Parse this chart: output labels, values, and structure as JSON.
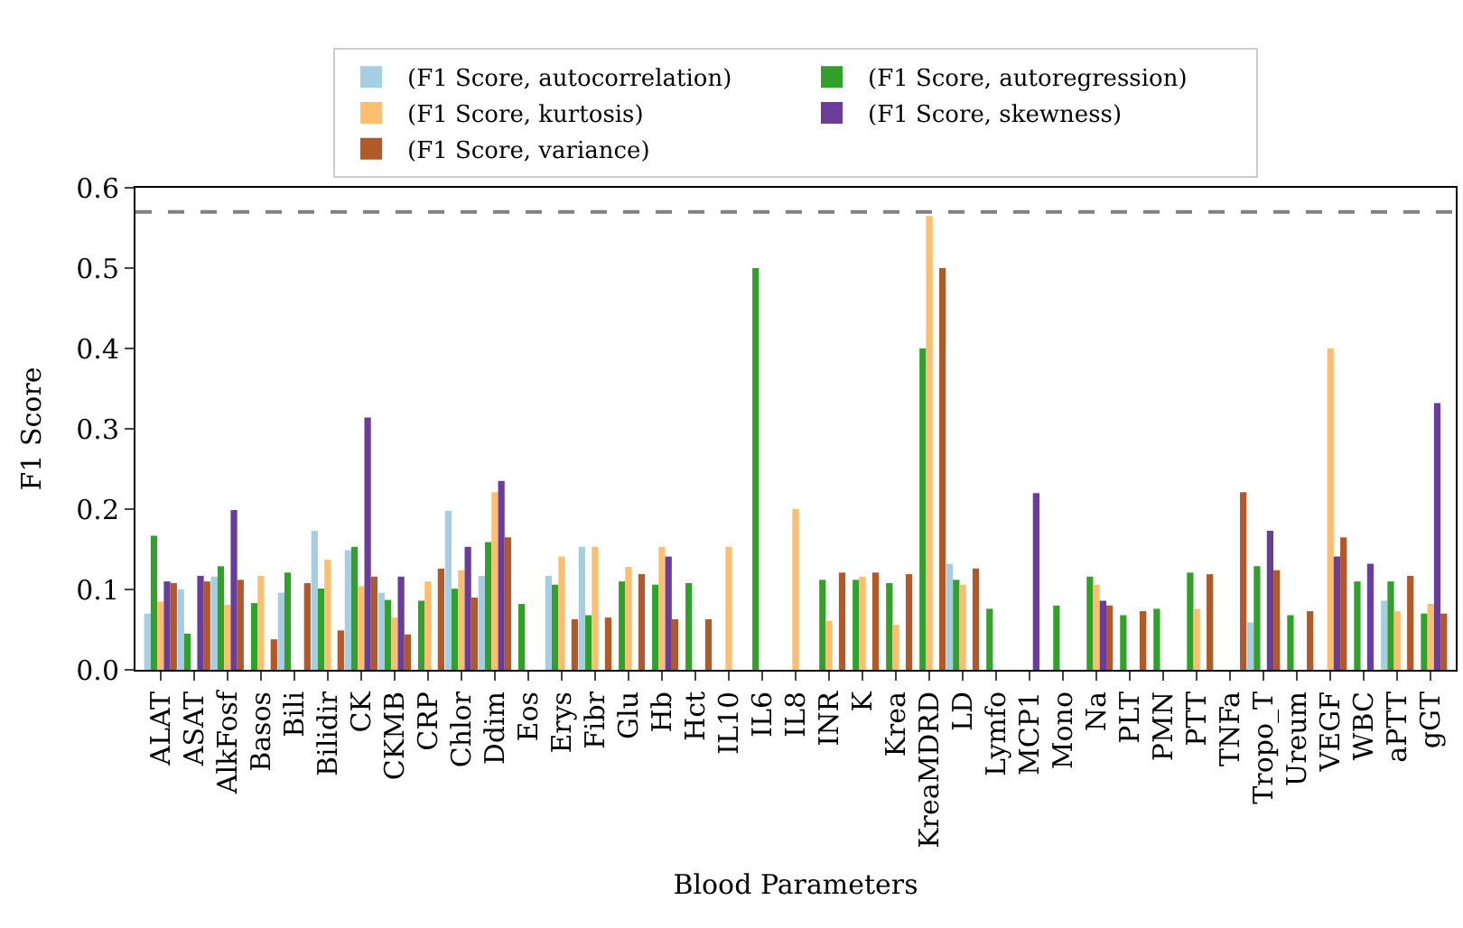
{
  "chart_data": {
    "type": "bar",
    "xlabel": "Blood Parameters",
    "ylabel": "F1 Score",
    "categories": [
      "ALAT",
      "ASAT",
      "AlkFosf",
      "Basos",
      "Bili",
      "Bilidir",
      "CK",
      "CKMB",
      "CRP",
      "Chlor",
      "Ddim",
      "Eos",
      "Erys",
      "Fibr",
      "Glu",
      "Hb",
      "Hct",
      "IL10",
      "IL6",
      "IL8",
      "INR",
      "K",
      "Krea",
      "KreaMDRD",
      "LD",
      "Lymfo",
      "MCP1",
      "Mono",
      "Na",
      "PLT",
      "PMN",
      "PTT",
      "TNFa",
      "Tropo_T",
      "Ureum",
      "VEGF",
      "WBC",
      "aPTT",
      "gGT"
    ],
    "series": [
      {
        "name": "(F1 Score, autocorrelation)",
        "color": "#a6cee3",
        "values": [
          0.07,
          0.1,
          0.116,
          null,
          0.096,
          0.173,
          0.149,
          0.096,
          null,
          0.198,
          0.117,
          null,
          0.117,
          0.153,
          null,
          null,
          null,
          null,
          null,
          null,
          null,
          null,
          null,
          null,
          0.132,
          null,
          null,
          null,
          null,
          null,
          null,
          null,
          null,
          0.059,
          null,
          null,
          null,
          0.086,
          null
        ]
      },
      {
        "name": "(F1 Score, autoregression)",
        "color": "#33a02c",
        "values": [
          0.167,
          0.045,
          0.129,
          0.083,
          0.121,
          0.101,
          0.153,
          0.087,
          0.086,
          0.101,
          0.159,
          0.082,
          0.106,
          0.068,
          0.11,
          0.106,
          0.108,
          null,
          0.5,
          null,
          0.112,
          0.112,
          0.108,
          0.4,
          0.112,
          0.076,
          null,
          0.08,
          0.116,
          0.068,
          0.076,
          0.121,
          null,
          0.129,
          0.068,
          null,
          0.11,
          0.11,
          0.07
        ]
      },
      {
        "name": "(F1 Score, kurtosis)",
        "color": "#fdbf6f",
        "values": [
          0.085,
          null,
          0.081,
          0.117,
          null,
          0.137,
          0.104,
          0.065,
          0.11,
          0.124,
          0.221,
          null,
          0.141,
          0.153,
          0.128,
          0.153,
          null,
          0.153,
          null,
          0.2,
          0.061,
          0.116,
          0.056,
          0.565,
          0.106,
          null,
          null,
          null,
          0.106,
          null,
          null,
          0.076,
          null,
          null,
          null,
          0.4,
          null,
          0.073,
          0.082
        ]
      },
      {
        "name": "(F1 Score, skewness)",
        "color": "#6a3d9a",
        "values": [
          0.11,
          0.117,
          0.199,
          null,
          null,
          null,
          0.314,
          0.116,
          null,
          0.153,
          0.235,
          null,
          null,
          null,
          null,
          0.141,
          null,
          null,
          null,
          null,
          null,
          null,
          null,
          null,
          null,
          null,
          0.22,
          null,
          0.086,
          null,
          null,
          null,
          null,
          0.173,
          null,
          0.141,
          0.132,
          null,
          0.332
        ]
      },
      {
        "name": "(F1 Score, variance)",
        "color": "#b15928",
        "values": [
          0.108,
          0.11,
          0.112,
          0.038,
          0.108,
          0.049,
          0.116,
          0.044,
          0.126,
          0.09,
          0.165,
          null,
          0.063,
          0.065,
          0.119,
          0.063,
          0.063,
          null,
          null,
          null,
          0.121,
          0.121,
          0.119,
          0.5,
          0.126,
          null,
          null,
          null,
          0.08,
          0.073,
          null,
          0.119,
          0.221,
          0.124,
          0.073,
          0.165,
          null,
          0.117,
          0.07
        ]
      }
    ],
    "ylim": [
      0,
      0.6
    ],
    "yticks": [
      {
        "value": 0,
        "label": "0.0"
      },
      0.1,
      0.2,
      0.3,
      0.4,
      0.5,
      0.6
    ],
    "ref_lines": [
      {
        "axis": "y",
        "value": 0.57,
        "color": "#808080",
        "line_style": "dashed"
      }
    ],
    "legend": "top"
  }
}
